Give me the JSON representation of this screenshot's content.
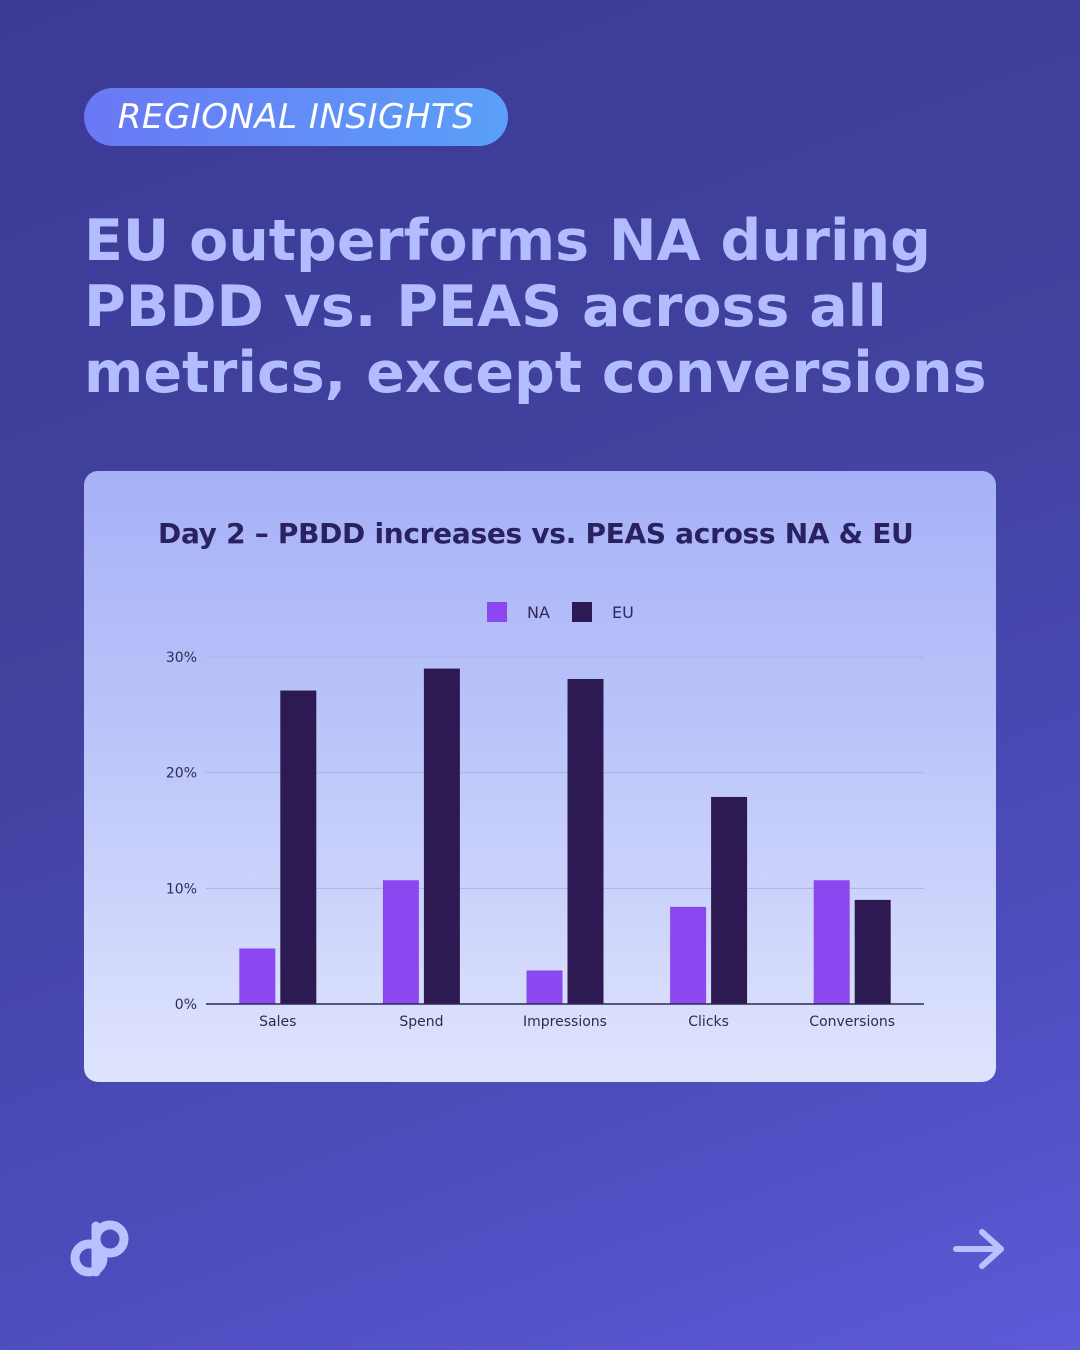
{
  "tag": "REGIONAL INSIGHTS",
  "headline": "EU outperforms NA during PBDD vs. PEAS across all metrics, except conversions",
  "colors": {
    "na": "#8b48f0",
    "eu": "#2e1a52",
    "axis": "#2e2a55",
    "grid": "#a9b2e8",
    "text": "#2e2a55"
  },
  "icons": {
    "logo": "brand-logo-icon",
    "next": "arrow-right-icon"
  },
  "chart_data": {
    "type": "bar",
    "title": "Day 2 – PBDD increases vs. PEAS across NA & EU",
    "categories": [
      "Sales",
      "Spend",
      "Impressions",
      "Clicks",
      "Conversions"
    ],
    "series": [
      {
        "name": "NA",
        "values": [
          4.8,
          10.7,
          2.9,
          8.4,
          10.7
        ]
      },
      {
        "name": "EU",
        "values": [
          27.1,
          29.0,
          28.1,
          17.9,
          9.0
        ]
      }
    ],
    "yticks": [
      "0%",
      "10%",
      "20%",
      "30%"
    ],
    "ytick_values": [
      0,
      10,
      20,
      30
    ],
    "ylim": [
      0,
      30
    ],
    "xlabel": "",
    "ylabel": "",
    "legend_position": "top-center",
    "grid": true
  }
}
